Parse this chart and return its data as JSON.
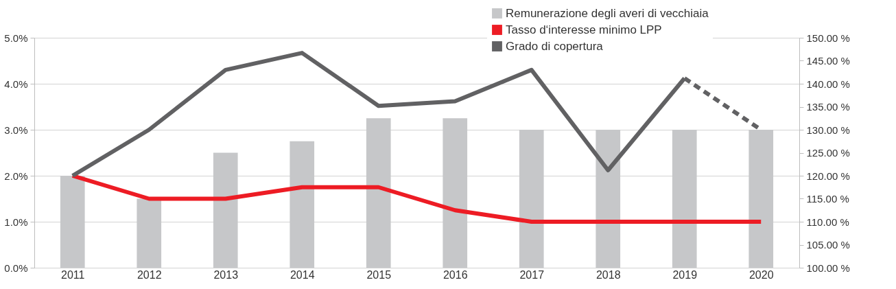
{
  "chart_data": {
    "type": "bar",
    "categories": [
      "2011",
      "2012",
      "2013",
      "2014",
      "2015",
      "2016",
      "2017",
      "2018",
      "2019",
      "2020"
    ],
    "series": [
      {
        "name": "Remunerazione degli averi di vecchiaia",
        "color": "#c6c7c9",
        "values": [
          2.0,
          1.5,
          2.5,
          2.75,
          3.25,
          3.25,
          3.0,
          3.0,
          3.0,
          3.0
        ]
      },
      {
        "name": "Tasso d‘interesse minimo LPP",
        "type": "line",
        "color": "#ed1c24",
        "line_style": "solid",
        "values": [
          2.0,
          1.5,
          1.5,
          1.75,
          1.75,
          1.25,
          1.0,
          1.0,
          1.0,
          1.0
        ]
      },
      {
        "name": "Grado di copertura",
        "type": "line",
        "color": "#616163",
        "axis": "y2",
        "line_style": "solid",
        "values": [
          120,
          130,
          143,
          146.7,
          135.2,
          136.2,
          143,
          121.2,
          141.2,
          null
        ]
      },
      {
        "type": "line",
        "color": "#616163",
        "axis": "y2",
        "line_style": "dashed",
        "values": [
          null,
          null,
          null,
          null,
          null,
          null,
          null,
          null,
          141.2,
          130
        ]
      }
    ],
    "ylim": [
      0,
      5
    ],
    "yticks": [
      {
        "value": 0,
        "label": "0.0%"
      },
      {
        "value": 1,
        "label": "1.0%"
      },
      {
        "value": 2,
        "label": "2.0%"
      },
      {
        "value": 3,
        "label": "3.0%"
      },
      {
        "value": 4,
        "label": "4.0%"
      },
      {
        "value": 5,
        "label": "5.0%"
      }
    ],
    "y2lim": [
      100,
      150
    ],
    "y2ticks": [
      {
        "value": 100,
        "label": "100.00 %"
      },
      {
        "value": 105,
        "label": "105.00 %"
      },
      {
        "value": 110,
        "label": "110.00 %"
      },
      {
        "value": 115,
        "label": "115.00 %"
      },
      {
        "value": 120,
        "label": "120.00 %"
      },
      {
        "value": 125,
        "label": "125.00 %"
      },
      {
        "value": 130,
        "label": "130.00 %"
      },
      {
        "value": 135,
        "label": "135.00 %"
      },
      {
        "value": 140,
        "label": "140.00 %"
      },
      {
        "value": 145,
        "label": "145.00 %"
      },
      {
        "value": 150,
        "label": "150.00 %"
      }
    ],
    "grid": "y",
    "legend": "top right",
    "marker": "none"
  }
}
